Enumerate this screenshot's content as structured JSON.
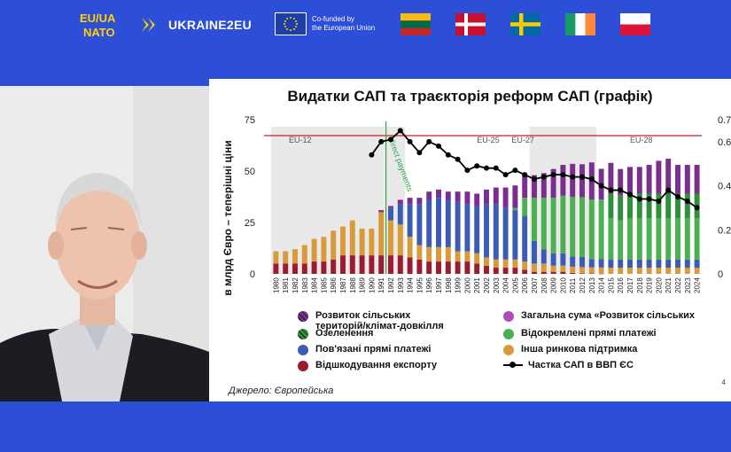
{
  "header": {
    "logo_euua_line1": "EU/UA",
    "logo_euua_line2": "NATO",
    "project_name": "UKRAINE2EU",
    "eu_line1": "Co-funded by",
    "eu_line2": "the European Union",
    "flags": [
      "lithuania",
      "denmark",
      "sweden",
      "ireland",
      "poland"
    ],
    "accent_color": "#2d4ed6",
    "yellow_color": "#ffd200"
  },
  "slide": {
    "title": "Видатки САП та траєкторія реформ САП (графік)",
    "source": "Джерело: Європейська",
    "page_number": "4",
    "legend": [
      {
        "label_line1": "Розвиток сільських",
        "label_line2": "територій/клімат-довкілля",
        "color": "#7a2e8e",
        "icon": "hatched-dot"
      },
      {
        "label_line1": "Загальна сума «Розвиток сільських",
        "label_line2": "",
        "color": "#b04db8",
        "icon": "dot"
      },
      {
        "label_line1": "Озеленення",
        "label_line2": "",
        "color": "#2f8f3a",
        "icon": "hatched-dot"
      },
      {
        "label_line1": "Відокремлені прямі платежі",
        "label_line2": "",
        "color": "#4caf50",
        "icon": "dot"
      },
      {
        "label_line1": "Пов'язані прямі платежі",
        "label_line2": "",
        "color": "#3b5bb5",
        "icon": "dot"
      },
      {
        "label_line1": "Інша ринкова підтримка",
        "label_line2": "",
        "color": "#d99a3a",
        "icon": "dot"
      },
      {
        "label_line1": "Відшкодування експорту",
        "label_line2": "",
        "color": "#9b1b30",
        "icon": "dot"
      },
      {
        "label_line1": "Частка САП в ВВП ЄС",
        "label_line2": "",
        "color": "#000000",
        "icon": "line-dot"
      }
    ]
  },
  "chart_data": {
    "type": "bar",
    "ylabel": "в млрд Євро – теперішні ціни",
    "ylim": [
      0,
      75
    ],
    "y_ticks": [
      "0",
      "25",
      "50",
      "75"
    ],
    "y2lim": [
      0,
      0.7
    ],
    "y2_ticks": [
      "0",
      "0.2",
      "0.4",
      "0.6",
      "0.7"
    ],
    "annotation_green_line": {
      "x": "1992",
      "label": "direct payments"
    },
    "eras": [
      {
        "label": "EU-12",
        "from": "1980",
        "to": "1994"
      },
      {
        "label": "EU-25",
        "from": "2004",
        "to": "2006"
      },
      {
        "label": "EU-27",
        "from": "2007",
        "to": "2013"
      },
      {
        "label": "EU-27",
        "from": "2007",
        "to": "2013"
      },
      {
        "label": "EU-28",
        "from": "2014",
        "to": "2020"
      }
    ],
    "categories": [
      "1980",
      "1981",
      "1982",
      "1983",
      "1984",
      "1985",
      "1986",
      "1987",
      "1988",
      "1989",
      "1990",
      "1991",
      "1992",
      "1993",
      "1994",
      "1995",
      "1996",
      "1997",
      "1998",
      "1999",
      "2000",
      "2001",
      "2002",
      "2003",
      "2004",
      "2005",
      "2006",
      "2007",
      "2008",
      "2009",
      "2010",
      "2011",
      "2012",
      "2013",
      "2014",
      "2015",
      "2016",
      "2017",
      "2018",
      "2019",
      "2020",
      "2021",
      "2022",
      "2023",
      "2024"
    ],
    "series": [
      {
        "name": "Відшкодування експорту",
        "color": "#9b1b30",
        "values": [
          5,
          5,
          5,
          5,
          6,
          6,
          7,
          9,
          9,
          9,
          9,
          9,
          9,
          9,
          8,
          7,
          6,
          6,
          6,
          6,
          6,
          5,
          4,
          3,
          3,
          3,
          2,
          1,
          1,
          1,
          1,
          0.5,
          0.3,
          0.2,
          0.1,
          0,
          0,
          0,
          0,
          0,
          0,
          0,
          0,
          0,
          0
        ]
      },
      {
        "name": "Інша ринкова підтримка",
        "color": "#d99a3a",
        "values": [
          6,
          6,
          7,
          9,
          11,
          12,
          14,
          14,
          17,
          13,
          13,
          21,
          17,
          15,
          10,
          7,
          7,
          7,
          7,
          5,
          5,
          5,
          4,
          4,
          4,
          4,
          4,
          4,
          4,
          3,
          3,
          3,
          3,
          3,
          3,
          3,
          3,
          3,
          3,
          3,
          3,
          3,
          3,
          3,
          3
        ]
      },
      {
        "name": "Пов'язані прямі платежі",
        "color": "#3b5bb5",
        "values": [
          0,
          0,
          0,
          0,
          0,
          0,
          0,
          0,
          0,
          0,
          0,
          0,
          6,
          10,
          16,
          20,
          23,
          24,
          23,
          24,
          23,
          23,
          26,
          27,
          25,
          24,
          22,
          11,
          7,
          6,
          6,
          5,
          5,
          4,
          4,
          4,
          4,
          4,
          4,
          4,
          4,
          4,
          4,
          4,
          4
        ]
      },
      {
        "name": "Відокремлені прямі платежі",
        "color": "#4caf50",
        "values": [
          0,
          0,
          0,
          0,
          0,
          0,
          0,
          0,
          0,
          0,
          0,
          0,
          0,
          0,
          0,
          0,
          0,
          0,
          0,
          0,
          0,
          0,
          0,
          0,
          0,
          1,
          9,
          21,
          25,
          27,
          28,
          29,
          29,
          29,
          29,
          20,
          19,
          20,
          20,
          20,
          20,
          20,
          20,
          20,
          20
        ]
      },
      {
        "name": "Озеленення",
        "color": "#2f8f3a",
        "values": [
          0,
          0,
          0,
          0,
          0,
          0,
          0,
          0,
          0,
          0,
          0,
          0,
          0,
          0,
          0,
          0,
          0,
          0,
          0,
          0,
          0,
          0,
          0,
          0,
          0,
          0,
          0,
          0,
          0,
          0,
          0,
          0,
          0,
          0,
          0,
          12,
          12,
          12,
          12,
          12,
          12,
          12,
          12,
          12,
          12
        ]
      },
      {
        "name": "Розвиток сільських територій/клімат-довкілля",
        "color": "#7a2e8e",
        "values": [
          0,
          0,
          0,
          0,
          0,
          0,
          0,
          0,
          0,
          0,
          0,
          1,
          1,
          2,
          3,
          3,
          4,
          4,
          4,
          5,
          6,
          6,
          7,
          8,
          10,
          11,
          11,
          11,
          12,
          14,
          15,
          16,
          16,
          18,
          15,
          15,
          13,
          13,
          13,
          14,
          16,
          17,
          14,
          14,
          14
        ]
      },
      {
        "name": "Частка САП в ВВП ЄС",
        "color": "#000000",
        "line": true,
        "values": [
          null,
          null,
          null,
          null,
          null,
          null,
          null,
          null,
          null,
          null,
          0.54,
          0.6,
          0.61,
          0.65,
          0.6,
          0.55,
          0.6,
          0.58,
          0.54,
          0.52,
          0.47,
          0.49,
          0.48,
          0.48,
          0.45,
          0.47,
          0.45,
          0.43,
          0.44,
          0.45,
          0.45,
          0.44,
          0.44,
          0.43,
          0.4,
          0.38,
          0.38,
          0.36,
          0.34,
          0.34,
          0.33,
          0.38,
          0.35,
          0.33,
          0.3
        ]
      }
    ]
  }
}
